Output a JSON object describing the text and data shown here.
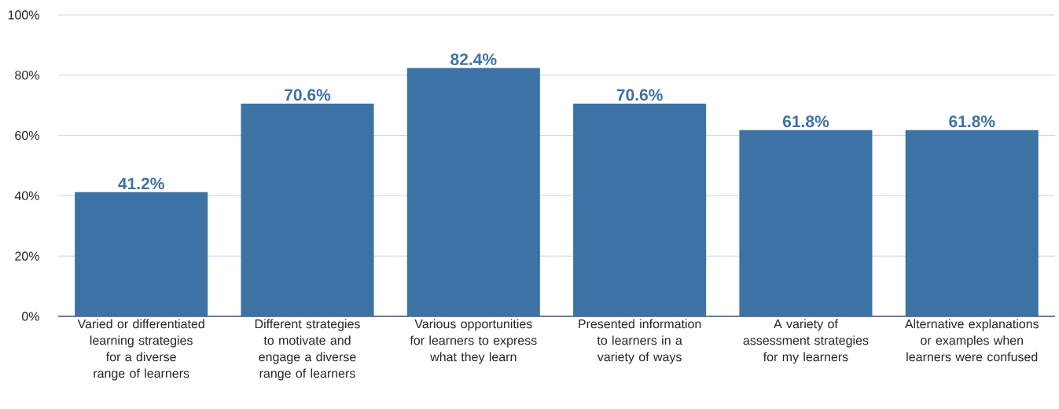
{
  "chart_data": {
    "type": "bar",
    "categories": [
      "Varied or differentiated learning strategies for a diverse range of learners",
      "Different strategies to motivate and engage a diverse range of learners",
      "Various opportunities for learners to express what they learn",
      "Presented information to learners in a variety of ways",
      "A variety of assessment strategies for my learners",
      "Alternative explanations or examples when learners were confused"
    ],
    "values": [
      41.2,
      70.6,
      82.4,
      70.6,
      61.8,
      61.8
    ],
    "value_labels": [
      "41.2%",
      "70.6%",
      "82.4%",
      "70.6%",
      "61.8%",
      "61.8%"
    ],
    "color": "#3d72a4",
    "ylim": [
      0,
      100
    ],
    "yticks": [
      {
        "value": 0,
        "label": "0%"
      },
      {
        "value": 20,
        "label": "20%"
      },
      {
        "value": 40,
        "label": "40%"
      },
      {
        "value": 60,
        "label": "60%"
      },
      {
        "value": 80,
        "label": "80%"
      },
      {
        "value": 100,
        "label": "100%"
      }
    ],
    "grid": "y"
  }
}
